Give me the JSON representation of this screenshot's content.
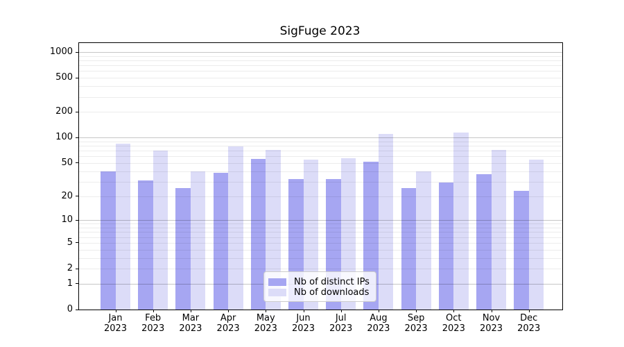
{
  "figure_title": "SigFuge 2023",
  "chart_data": {
    "type": "bar",
    "title": "SigFuge 2023",
    "xlabel": "",
    "ylabel": "",
    "yscale": "log1p",
    "ylim": [
      0,
      1250
    ],
    "yticks": [
      0,
      1,
      2,
      5,
      10,
      20,
      50,
      100,
      200,
      500,
      1000
    ],
    "grid": "horizontal major+minor",
    "legend_position": "lower center",
    "categories": [
      "Jan 2023",
      "Feb 2023",
      "Mar 2023",
      "Apr 2023",
      "May 2023",
      "Jun 2023",
      "Jul 2023",
      "Aug 2023",
      "Sep 2023",
      "Oct 2023",
      "Nov 2023",
      "Dec 2023"
    ],
    "series": [
      {
        "name": "Nb of distinct IPs",
        "color": "#a6a6f2",
        "values": [
          40,
          31,
          25,
          38,
          56,
          32,
          32,
          52,
          25,
          29,
          37,
          23
        ]
      },
      {
        "name": "Nb of downloads",
        "color": "#dcdcf8",
        "values": [
          85,
          70,
          40,
          78,
          71,
          55,
          57,
          110,
          40,
          115,
          71,
          55
        ]
      }
    ]
  },
  "colors": {
    "grid_major": "#c7c7c7",
    "grid_minor": "#ececec",
    "spine": "#000000",
    "legend_border": "#cccccc"
  }
}
